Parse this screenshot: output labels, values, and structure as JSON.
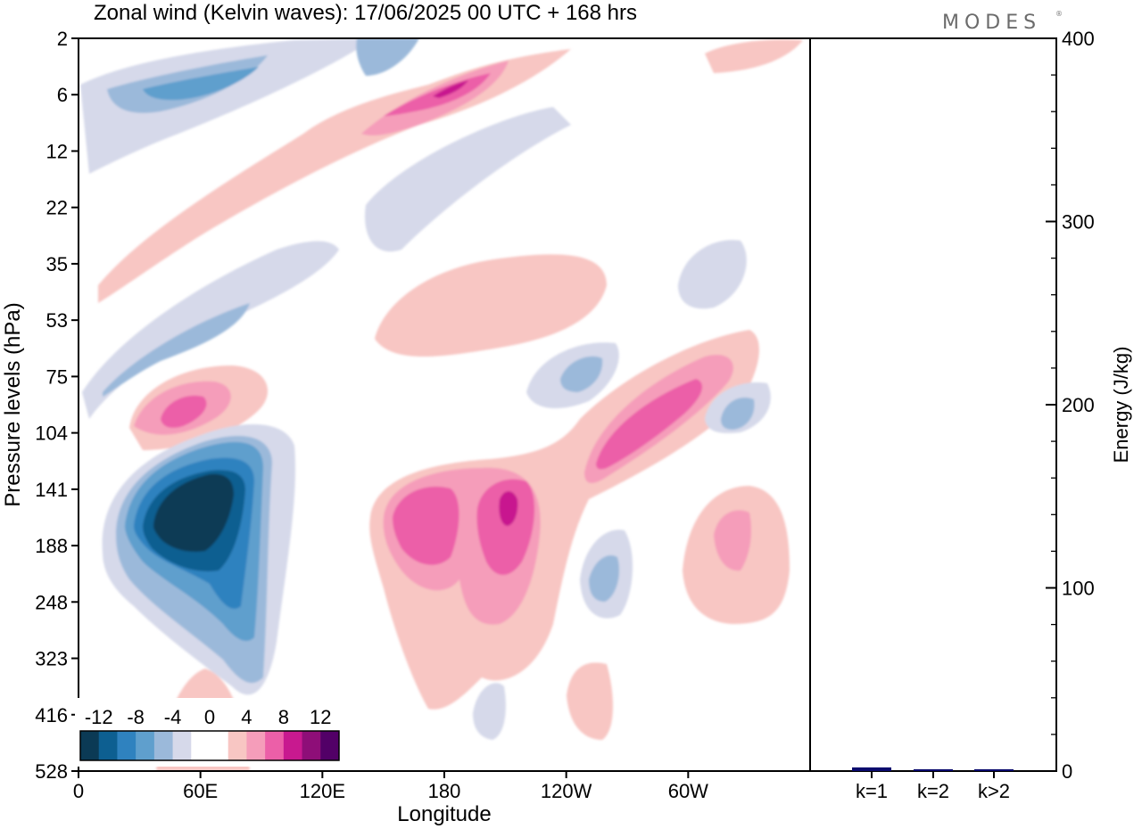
{
  "chart_data": [
    {
      "type": "heatmap",
      "title": "Zonal wind (Kelvin waves):  17/06/2025  00 UTC  + 168 hrs",
      "xlabel": "Longitude",
      "ylabel": "Pressure levels (hPa)",
      "x_ticks": [
        "0",
        "60E",
        "120E",
        "180",
        "120W",
        "60W"
      ],
      "y_ticks": [
        "2",
        "6",
        "12",
        "22",
        "35",
        "53",
        "75",
        "104",
        "141",
        "188",
        "248",
        "323",
        "416",
        "528"
      ],
      "colorbar": {
        "labels": [
          "-12",
          "-8",
          "-4",
          "0",
          "4",
          "8",
          "12"
        ],
        "levels": [
          -14,
          -12,
          -10,
          -8,
          -6,
          -4,
          -2,
          0,
          2,
          4,
          6,
          8,
          10,
          12,
          14
        ],
        "colors": [
          "#0b3a55",
          "#0d5f91",
          "#2f82bf",
          "#5f9fcd",
          "#9bb9da",
          "#d6d9ea",
          "#ffffff",
          "#ffffff",
          "#f8c6c3",
          "#f59dba",
          "#ec5fa8",
          "#c8198f",
          "#8e0e78",
          "#520067"
        ]
      },
      "features": [
        {
          "name": "negative anomaly",
          "lon": 40,
          "level": 160,
          "value": -14
        },
        {
          "name": "positive anomaly",
          "lon": 40,
          "level": 95,
          "value": 10
        },
        {
          "name": "positive anomaly",
          "lon": 170,
          "level": 150,
          "value": 8
        },
        {
          "name": "positive anomaly",
          "lon": 200,
          "level": 150,
          "value": 10
        },
        {
          "name": "positive anomaly",
          "lon": 270,
          "level": 95,
          "value": 8
        },
        {
          "name": "positive anomaly",
          "lon": 185,
          "level": 6,
          "value": 10
        },
        {
          "name": "negative anomaly",
          "lon": 80,
          "level": 5,
          "value": -8
        }
      ]
    },
    {
      "type": "bar",
      "ylabel": "Energy (J/kg)",
      "categories": [
        "k=1",
        "k=2",
        "k>2"
      ],
      "values": [
        2,
        1,
        1
      ],
      "ylim": [
        0,
        400
      ],
      "y_ticks": [
        "0",
        "100",
        "200",
        "300",
        "400"
      ],
      "bar_color": "#0a0a6e"
    }
  ],
  "branding": {
    "logo_text": "MODES"
  }
}
